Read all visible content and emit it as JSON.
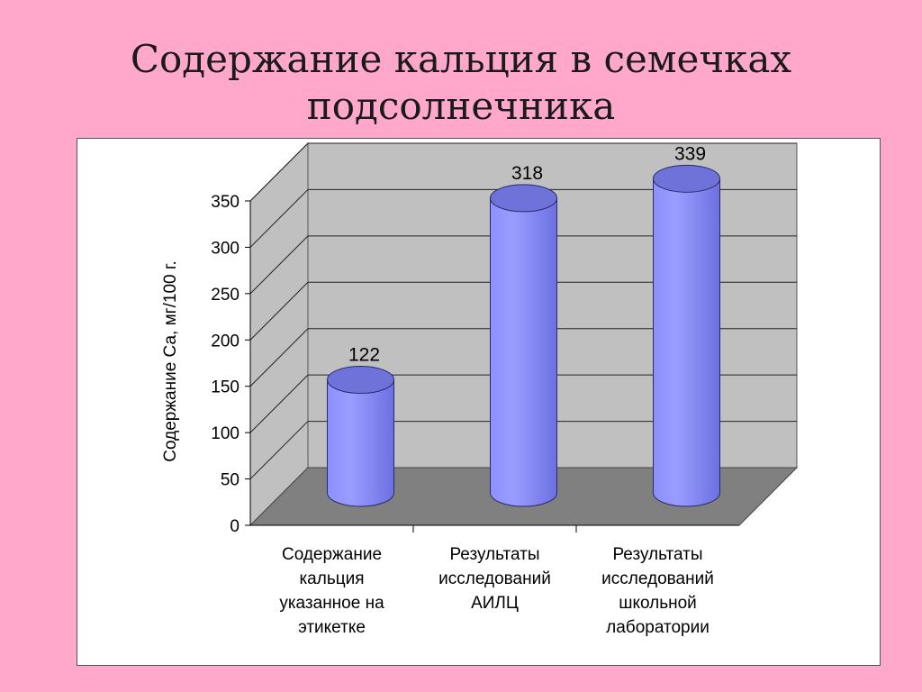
{
  "title": {
    "line1": "Содержание кальция в семечках",
    "line2": "подсолнечника"
  },
  "colors": {
    "background": "#ffa8cc",
    "bar": "#7b7ff0",
    "bar_top": "#6f72d8",
    "wall": "#c0c0c0",
    "floor": "#808080"
  },
  "chart_data": {
    "type": "bar",
    "style": "3d-cylinder",
    "categories": [
      [
        "Содержание",
        "кальция",
        "указанное на",
        "этикетке"
      ],
      [
        "Результаты",
        "исследований",
        "АИЛЦ"
      ],
      [
        "Результаты",
        "исследований",
        "школьной",
        "лаборатории"
      ]
    ],
    "values": [
      122,
      318,
      339
    ],
    "data_labels": [
      "122",
      "318",
      "339"
    ],
    "ylabel": "Содержание Са, мг/100 г.",
    "ylim": [
      0,
      350
    ],
    "yticks": [
      0,
      50,
      100,
      150,
      200,
      250,
      300,
      350
    ],
    "grid": true
  }
}
